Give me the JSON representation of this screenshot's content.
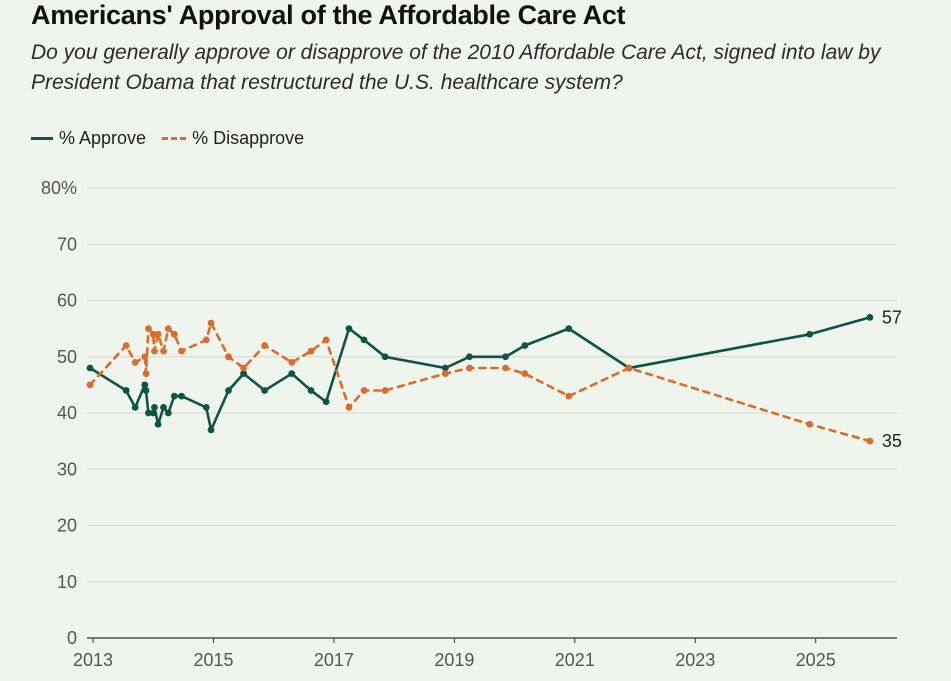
{
  "title": "Americans' Approval of the Affordable Care Act",
  "subtitle": "Do you generally approve or disapprove of the 2010 Affordable Care Act, signed into law by President Obama that restructured the U.S. healthcare system?",
  "legend": {
    "approve": "% Approve",
    "disapprove": "% Disapprove"
  },
  "colors": {
    "approve": "#0e5445",
    "disapprove": "#dd6b2c",
    "grid": "#d4dccf",
    "axis": "#333333",
    "background": "#eff5ec"
  },
  "chart_data": {
    "type": "line",
    "title": "Americans' Approval of the Affordable Care Act",
    "xlabel": "",
    "ylabel": "",
    "xlim": [
      2012.9,
      2026.35
    ],
    "ylim": [
      0,
      80
    ],
    "y_ticks": [
      0,
      10,
      20,
      30,
      40,
      50,
      60,
      70,
      80
    ],
    "y_tick_labels": [
      "0",
      "10",
      "20",
      "30",
      "40",
      "50",
      "60",
      "70",
      "80%"
    ],
    "x_ticks": [
      2013,
      2015,
      2017,
      2019,
      2021,
      2023,
      2025
    ],
    "x_tick_labels": [
      "2013",
      "2015",
      "2017",
      "2019",
      "2021",
      "2023",
      "2025"
    ],
    "grid": true,
    "legend_position": "top-left",
    "series": [
      {
        "name": "% Approve",
        "style": "solid",
        "points": [
          [
            2012.95,
            48
          ],
          [
            2013.55,
            44
          ],
          [
            2013.7,
            41
          ],
          [
            2013.86,
            45
          ],
          [
            2013.88,
            44
          ],
          [
            2013.92,
            40
          ],
          [
            2014.0,
            40
          ],
          [
            2014.02,
            41
          ],
          [
            2014.08,
            38
          ],
          [
            2014.17,
            41
          ],
          [
            2014.25,
            40
          ],
          [
            2014.35,
            43
          ],
          [
            2014.47,
            43
          ],
          [
            2014.88,
            41
          ],
          [
            2014.96,
            37
          ],
          [
            2015.25,
            44
          ],
          [
            2015.5,
            47
          ],
          [
            2015.85,
            44
          ],
          [
            2016.3,
            47
          ],
          [
            2016.62,
            44
          ],
          [
            2016.87,
            42
          ],
          [
            2017.25,
            55
          ],
          [
            2017.5,
            53
          ],
          [
            2017.85,
            50
          ],
          [
            2018.85,
            48
          ],
          [
            2019.25,
            50
          ],
          [
            2019.85,
            50
          ],
          [
            2020.17,
            52
          ],
          [
            2020.9,
            55
          ],
          [
            2021.9,
            48
          ],
          [
            2024.9,
            54
          ],
          [
            2025.9,
            57
          ]
        ]
      },
      {
        "name": "% Disapprove",
        "style": "dashed",
        "points": [
          [
            2012.95,
            45
          ],
          [
            2013.55,
            52
          ],
          [
            2013.7,
            49
          ],
          [
            2013.86,
            50
          ],
          [
            2013.88,
            47
          ],
          [
            2013.92,
            55
          ],
          [
            2014.0,
            54
          ],
          [
            2014.02,
            51
          ],
          [
            2014.08,
            54
          ],
          [
            2014.17,
            51
          ],
          [
            2014.25,
            55
          ],
          [
            2014.35,
            54
          ],
          [
            2014.47,
            51
          ],
          [
            2014.88,
            53
          ],
          [
            2014.96,
            56
          ],
          [
            2015.25,
            50
          ],
          [
            2015.5,
            48
          ],
          [
            2015.85,
            52
          ],
          [
            2016.3,
            49
          ],
          [
            2016.62,
            51
          ],
          [
            2016.87,
            53
          ],
          [
            2017.25,
            41
          ],
          [
            2017.5,
            44
          ],
          [
            2017.85,
            44
          ],
          [
            2018.85,
            47
          ],
          [
            2019.25,
            48
          ],
          [
            2019.85,
            48
          ],
          [
            2020.17,
            47
          ],
          [
            2020.9,
            43
          ],
          [
            2021.9,
            48
          ],
          [
            2024.9,
            38
          ],
          [
            2025.9,
            35
          ]
        ]
      }
    ],
    "end_labels": {
      "approve": "57",
      "disapprove": "35"
    }
  }
}
